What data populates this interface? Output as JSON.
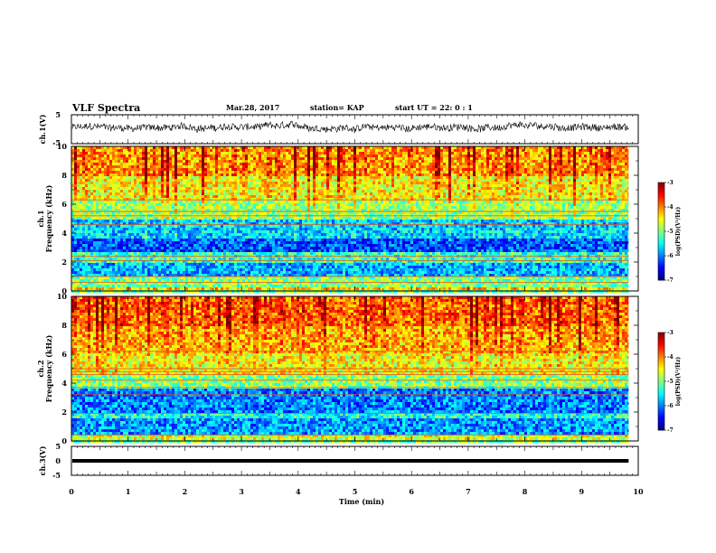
{
  "header": {
    "title": "VLF Spectra",
    "date": "Mar.28, 2017",
    "station": "station= KAP",
    "start": "start  UT  =   22: 0  : 1"
  },
  "chart_data": [
    {
      "id": "ch1-waveform",
      "type": "line",
      "ylabel": "ch.1(V)",
      "ylim": [
        -5,
        5
      ],
      "yticks": [
        "5",
        "-5"
      ],
      "xlim": [
        0,
        9.83
      ],
      "note_series": "dense noise waveform, amplitude approx. 1 to 2.5 V, mean slightly positive"
    },
    {
      "id": "ch1-spectrogram",
      "type": "heatmap",
      "ylabel": "ch.1\nFrequency  (kHz)",
      "ylabel_lines": [
        "ch.1",
        "Frequency  (kHz)"
      ],
      "ylim": [
        0,
        10
      ],
      "yticks": [
        "0",
        "2",
        "4",
        "6",
        "8",
        "10"
      ],
      "xlim": [
        0,
        9.83
      ],
      "colorbar": {
        "label": "log(PSD)(V²/Hz)",
        "range": [
          -7,
          -3
        ],
        "ticks": [
          "-3",
          "-4",
          "-5",
          "-6",
          "-7"
        ]
      },
      "bands_khz": [
        {
          "from": 0.0,
          "to": 0.3,
          "level": -4.3
        },
        {
          "from": 0.3,
          "to": 1.0,
          "level": -5.0
        },
        {
          "from": 1.0,
          "to": 2.0,
          "level": -5.8
        },
        {
          "from": 2.0,
          "to": 2.6,
          "level": -5.3
        },
        {
          "from": 2.6,
          "to": 3.6,
          "level": -6.2
        },
        {
          "from": 3.6,
          "to": 4.9,
          "level": -5.7
        },
        {
          "from": 4.9,
          "to": 6.2,
          "level": -4.9
        },
        {
          "from": 6.2,
          "to": 8.0,
          "level": -4.5
        },
        {
          "from": 8.0,
          "to": 10.0,
          "level": -4.1
        }
      ],
      "lines_khz": [
        0.6,
        1.0,
        2.1,
        2.4,
        4.6,
        5.2,
        5.5,
        6.3
      ]
    },
    {
      "id": "ch2-spectrogram",
      "type": "heatmap",
      "ylabel": "ch.2\nFrequency  (kHz)",
      "ylabel_lines": [
        "ch.2",
        "Frequency  (kHz)"
      ],
      "ylim": [
        0,
        10
      ],
      "yticks": [
        "0",
        "2",
        "4",
        "6",
        "8",
        "10"
      ],
      "xlim": [
        0,
        9.83
      ],
      "colorbar": {
        "label": "log(PSD)(V²/Hz)",
        "range": [
          -7,
          -3
        ],
        "ticks": [
          "-3",
          "-4",
          "-5",
          "-6",
          "-7"
        ]
      },
      "bands_khz": [
        {
          "from": 0.0,
          "to": 0.5,
          "level": -4.6
        },
        {
          "from": 0.5,
          "to": 1.6,
          "level": -5.9
        },
        {
          "from": 1.6,
          "to": 2.0,
          "level": -5.4
        },
        {
          "from": 2.0,
          "to": 3.6,
          "level": -6.0
        },
        {
          "from": 3.6,
          "to": 4.5,
          "level": -5.0
        },
        {
          "from": 4.5,
          "to": 6.0,
          "level": -4.5
        },
        {
          "from": 6.0,
          "to": 8.0,
          "level": -4.2
        },
        {
          "from": 8.0,
          "to": 10.0,
          "level": -3.9
        }
      ],
      "lines_khz": [
        0.4,
        1.9,
        3.2,
        3.7,
        4.2,
        4.6,
        4.8,
        5.0,
        6.2
      ]
    },
    {
      "id": "ch3-waveform",
      "type": "line",
      "ylabel": "ch.3(V)",
      "ylim": [
        -5,
        5
      ],
      "yticks": [
        "5",
        "0",
        "-5"
      ],
      "xlim": [
        0,
        9.83
      ],
      "constant_value": 0.0,
      "xlabel": "Time  (min)",
      "xlim_axis": [
        0,
        10
      ],
      "xticks": [
        "0",
        "1",
        "2",
        "3",
        "4",
        "5",
        "6",
        "7",
        "8",
        "9",
        "10"
      ]
    }
  ]
}
